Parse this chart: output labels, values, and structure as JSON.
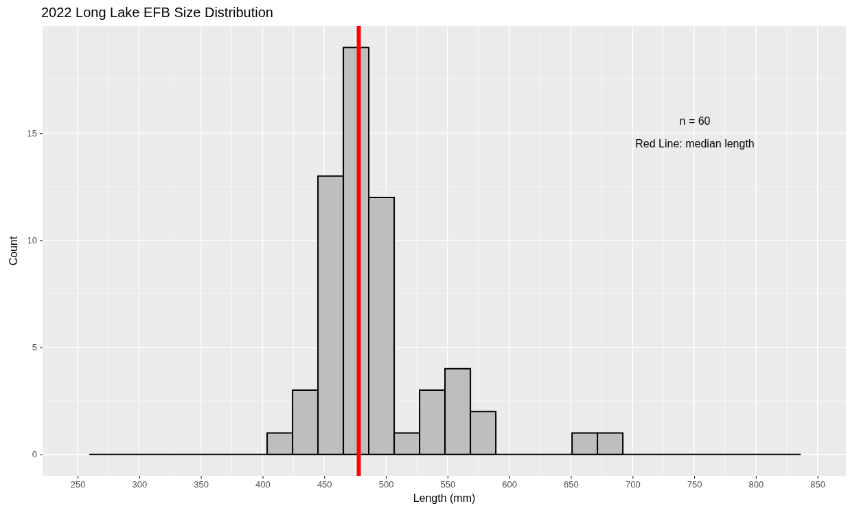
{
  "chart_data": {
    "type": "histogram",
    "title": "2022 Long Lake EFB Size Distribution",
    "xlabel": "Length (mm)",
    "ylabel": "Count",
    "bins": [
      259.5,
      280.1,
      300.7,
      321.3,
      341.9,
      362.5,
      383.1,
      403.7,
      424.3,
      444.9,
      465.5,
      486.1,
      506.7,
      527.3,
      547.9,
      568.5,
      589.1,
      609.7,
      630.3,
      650.9,
      671.5,
      692.1,
      712.7,
      733.3,
      753.9,
      774.5,
      795.1,
      815.7,
      836.3
    ],
    "values": [
      0,
      0,
      0,
      0,
      0,
      0,
      0,
      1,
      3,
      13,
      19,
      12,
      1,
      3,
      4,
      2,
      0,
      0,
      0,
      1,
      1,
      0,
      0,
      0,
      0,
      0,
      0,
      0
    ],
    "color": "#bebebe",
    "xlim": [
      221.6,
      873
    ],
    "xticks": [
      250,
      300,
      350,
      400,
      450,
      500,
      550,
      600,
      650,
      700,
      750,
      800,
      850
    ],
    "ylim": [
      -1,
      20
    ],
    "yticks": [
      0,
      5,
      10,
      15
    ],
    "grid": true,
    "ref_lines": [
      {
        "axis": "x",
        "value": 478,
        "color": "#ff0000"
      }
    ],
    "annotations": [
      "n = 60",
      "Red Line: median length"
    ]
  }
}
